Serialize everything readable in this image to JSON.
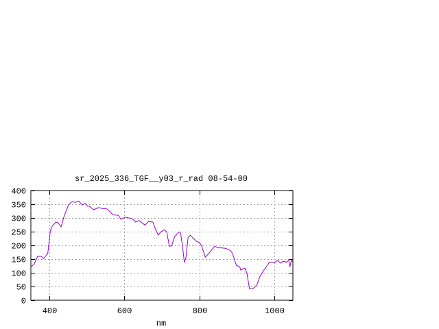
{
  "chart_data": {
    "type": "line",
    "title": "sr_2025_336_TGF__y03_r_rad 08-54-00",
    "xlabel": "nm",
    "ylabel": "",
    "xlim": [
      350,
      1050
    ],
    "ylim": [
      0,
      400
    ],
    "xticks": [
      400,
      600,
      800,
      1000
    ],
    "yticks": [
      0,
      50,
      100,
      150,
      200,
      250,
      300,
      350,
      400
    ],
    "grid": true,
    "line_color": "#9400d3",
    "grid_color": "#a0a0a0",
    "series": [
      {
        "x": [
          350,
          352,
          359,
          368,
          378,
          384,
          395,
          402,
          407,
          417,
          423,
          431,
          438,
          451,
          460,
          469,
          478,
          487,
          495,
          502,
          506,
          518,
          531,
          542,
          554,
          569,
          579,
          583,
          591,
          603,
          621,
          630,
          639,
          655,
          664,
          676,
          681,
          690,
          697,
          707,
          713,
          720,
          726,
          734,
          746,
          750,
          756,
          760,
          764,
          770,
          776,
          785,
          791,
          800,
          806,
          816,
          825,
          841,
          850,
          859,
          871,
          883,
          889,
          899,
          908,
          911,
          922,
          927,
          934,
          944,
          953,
          962,
          971,
          980,
          987,
          999,
          1010,
          1017,
          1024,
          1033,
          1039,
          1042,
          1046,
          1050
        ],
        "y": [
          124,
          124,
          132,
          160,
          160,
          152,
          170,
          253,
          270,
          285,
          282,
          268,
          303,
          349,
          359,
          357,
          362,
          347,
          353,
          343,
          343,
          330,
          338,
          334,
          333,
          312,
          310,
          310,
          295,
          303,
          297,
          285,
          291,
          274,
          287,
          285,
          266,
          238,
          249,
          257,
          249,
          197,
          198,
          232,
          249,
          245,
          187,
          138,
          153,
          228,
          237,
          224,
          216,
          210,
          199,
          157,
          170,
          197,
          191,
          191,
          189,
          181,
          170,
          127,
          122,
          110,
          117,
          99,
          42,
          43,
          53,
          87,
          107,
          124,
          138,
          137,
          145,
          135,
          142,
          139,
          145,
          122,
          145,
          140
        ]
      }
    ]
  }
}
